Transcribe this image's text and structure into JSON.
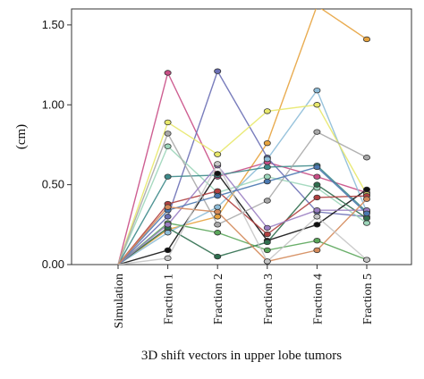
{
  "chart_data": {
    "type": "line",
    "xlabel": "3D shift vectors in upper lobe tumors",
    "ylabel": "(cm)",
    "ylim": [
      0,
      1.6
    ],
    "yticks": [
      "0.00",
      "0.50",
      "1.00",
      "1.50"
    ],
    "categories": [
      "Simulation",
      "Fraction 1",
      "Fraction 2",
      "Fraction 3",
      "Fraction 4",
      "Fraction 5"
    ],
    "grid": false,
    "legend": "none",
    "series": [
      {
        "color": "#e7a33e",
        "values": [
          0,
          0.22,
          0.3,
          0.76,
          1.62,
          1.41
        ]
      },
      {
        "color": "#c94e86",
        "values": [
          0,
          1.2,
          0.55,
          0.64,
          0.55,
          0.45
        ]
      },
      {
        "color": "#6a6fb5",
        "values": [
          0,
          0.3,
          1.21,
          0.67,
          0.33,
          0.3
        ]
      },
      {
        "color": "#8dbcd8",
        "values": [
          0,
          0.2,
          0.36,
          0.66,
          1.09,
          0.33
        ]
      },
      {
        "color": "#e8e86a",
        "values": [
          0,
          0.89,
          0.69,
          0.96,
          1.0,
          0.44
        ]
      },
      {
        "color": "#9dd6ba",
        "values": [
          0,
          0.74,
          0.45,
          0.55,
          0.48,
          0.26
        ]
      },
      {
        "color": "#3d8a8a",
        "values": [
          0,
          0.55,
          0.56,
          0.61,
          0.62,
          0.33
        ]
      },
      {
        "color": "#111111",
        "values": [
          0,
          0.09,
          0.57,
          0.15,
          0.25,
          0.47
        ]
      },
      {
        "color": "#2f6e4e",
        "values": [
          0,
          0.23,
          0.05,
          0.14,
          0.5,
          0.29
        ]
      },
      {
        "color": "#b04040",
        "values": [
          0,
          0.38,
          0.46,
          0.19,
          0.42,
          0.43
        ]
      },
      {
        "color": "#a8a8a8",
        "values": [
          0,
          0.82,
          0.25,
          0.4,
          0.83,
          0.67
        ]
      },
      {
        "color": "#5aa65a",
        "values": [
          0,
          0.26,
          0.2,
          0.09,
          0.15,
          0.03
        ]
      },
      {
        "color": "#9a7ec2",
        "values": [
          0,
          0.25,
          0.62,
          0.23,
          0.34,
          0.34
        ]
      },
      {
        "color": "#4a78b0",
        "values": [
          0,
          0.34,
          0.43,
          0.52,
          0.61,
          0.32
        ]
      },
      {
        "color": "#d48a5a",
        "values": [
          0,
          0.36,
          0.33,
          0.02,
          0.09,
          0.41
        ]
      },
      {
        "color": "#c7c7c7",
        "values": [
          0,
          0.04,
          0.63,
          0.02,
          0.3,
          0.03
        ]
      }
    ]
  }
}
